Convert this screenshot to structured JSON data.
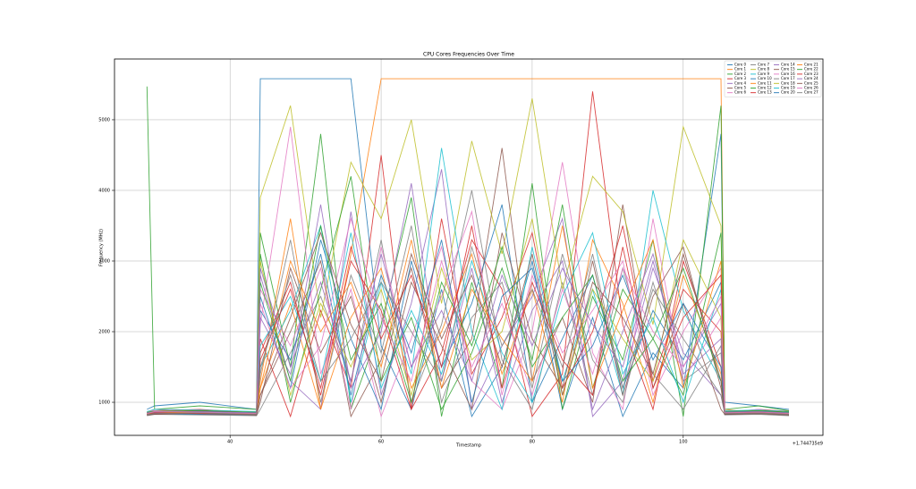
{
  "chart_data": {
    "type": "line",
    "title": "CPU Cores Frequencies Over Time",
    "x_label": "Timestamp",
    "y_label": "Frequency (MHz)",
    "x_offset_text": "+1.744735e9",
    "x": [
      29,
      30,
      36,
      43.5,
      44,
      48,
      52,
      56,
      60,
      64,
      68,
      72,
      76,
      80,
      84,
      88,
      92,
      96,
      100,
      105,
      105.5,
      110,
      114
    ],
    "xlim": [
      24.7,
      118.5
    ],
    "xticks": [
      40,
      60,
      80,
      100
    ],
    "ylim": [
      532,
      5860
    ],
    "yticks": [
      1000,
      2000,
      3000,
      4000,
      5000
    ],
    "grid": true,
    "legend_loc": "upper right",
    "legend_columns": 4,
    "series": [
      {
        "name": "Core 0",
        "color": "#1f77b4",
        "values": [
          900,
          950,
          1000,
          900,
          5580,
          5580,
          5580,
          5580,
          1800,
          900,
          2600,
          800,
          1500,
          3000,
          900,
          2200,
          800,
          1700,
          1200,
          4800,
          1000,
          950,
          900
        ]
      },
      {
        "name": "Core 1",
        "color": "#ff7f0e",
        "values": [
          850,
          900,
          880,
          850,
          1200,
          2400,
          900,
          3100,
          5580,
          5580,
          5580,
          5580,
          5580,
          5580,
          5580,
          5580,
          5580,
          5580,
          5580,
          5580,
          900,
          850,
          880
        ]
      },
      {
        "name": "Core 2",
        "color": "#2ca02c",
        "values": [
          5470,
          900,
          950,
          900,
          3400,
          1500,
          4800,
          900,
          2100,
          3900,
          800,
          2700,
          1200,
          4100,
          900,
          2500,
          1600,
          3300,
          800,
          5200,
          900,
          950,
          880
        ]
      },
      {
        "name": "Core 3",
        "color": "#d62728",
        "values": [
          850,
          880,
          900,
          850,
          1900,
          800,
          2300,
          1200,
          4500,
          900,
          1700,
          3300,
          2600,
          800,
          1400,
          5400,
          2100,
          900,
          3000,
          1500,
          850,
          900,
          870
        ]
      },
      {
        "name": "Core 4",
        "color": "#9467bd",
        "values": [
          820,
          860,
          840,
          820,
          2800,
          1300,
          900,
          3700,
          1100,
          2400,
          4300,
          900,
          1800,
          2500,
          3600,
          800,
          1300,
          2900,
          1700,
          1100,
          840,
          860,
          820
        ]
      },
      {
        "name": "Core 5",
        "color": "#8c564b",
        "values": [
          830,
          850,
          870,
          830,
          1100,
          2000,
          3000,
          800,
          1600,
          2900,
          1200,
          1900,
          4600,
          1300,
          2200,
          1000,
          3800,
          1200,
          2400,
          900,
          830,
          850,
          840
        ]
      },
      {
        "name": "Core 6",
        "color": "#e377c2",
        "values": [
          840,
          900,
          860,
          840,
          2100,
          4900,
          1400,
          2600,
          800,
          1900,
          3200,
          1300,
          900,
          2000,
          4400,
          1700,
          900,
          3600,
          1300,
          2200,
          860,
          900,
          840
        ]
      },
      {
        "name": "Core 7",
        "color": "#7f7f7f",
        "values": [
          810,
          830,
          820,
          810,
          900,
          1700,
          2500,
          1300,
          3300,
          1000,
          2100,
          4000,
          1600,
          900,
          2700,
          1100,
          2900,
          1400,
          900,
          1800,
          820,
          830,
          810
        ]
      },
      {
        "name": "Core 8",
        "color": "#bcbd22",
        "values": [
          860,
          880,
          870,
          860,
          3900,
          5200,
          2200,
          4400,
          3600,
          5000,
          2400,
          4700,
          3100,
          5300,
          2600,
          4200,
          3700,
          2100,
          4900,
          3500,
          870,
          880,
          860
        ]
      },
      {
        "name": "Core 9",
        "color": "#17becf",
        "values": [
          870,
          900,
          890,
          870,
          1500,
          2300,
          3500,
          1000,
          2700,
          1400,
          4600,
          2000,
          900,
          3200,
          1300,
          2600,
          1100,
          4000,
          2300,
          1300,
          880,
          890,
          870
        ]
      },
      {
        "name": "Core 10",
        "color": "#1f77b4",
        "values": [
          830,
          840,
          860,
          830,
          2500,
          1200,
          3300,
          1900,
          900,
          3000,
          1500,
          2400,
          3800,
          1000,
          1900,
          2800,
          1200,
          2300,
          1600,
          2700,
          840,
          850,
          830
        ]
      },
      {
        "name": "Core 11",
        "color": "#ff7f0e",
        "values": [
          820,
          850,
          830,
          820,
          1300,
          3600,
          900,
          2200,
          2900,
          1200,
          2000,
          3100,
          1400,
          2600,
          1000,
          3300,
          2400,
          1000,
          2800,
          1400,
          830,
          840,
          820
        ]
      },
      {
        "name": "Core 12",
        "color": "#2ca02c",
        "values": [
          840,
          870,
          850,
          840,
          3100,
          1000,
          2600,
          4200,
          1300,
          2200,
          900,
          1700,
          2900,
          1600,
          3800,
          1200,
          2600,
          1900,
          1100,
          3400,
          850,
          870,
          840
        ]
      },
      {
        "name": "Core 13",
        "color": "#d62728",
        "values": [
          850,
          860,
          880,
          850,
          1700,
          2700,
          1100,
          3000,
          2300,
          900,
          3600,
          1400,
          2200,
          3400,
          1200,
          2000,
          3500,
          1300,
          2600,
          2000,
          860,
          870,
          850
        ]
      },
      {
        "name": "Core 14",
        "color": "#9467bd",
        "values": [
          830,
          850,
          840,
          830,
          2200,
          1400,
          3800,
          1200,
          2000,
          4100,
          1300,
          2900,
          1000,
          2300,
          3000,
          900,
          2000,
          3100,
          1500,
          2400,
          840,
          850,
          830
        ]
      },
      {
        "name": "Core 15",
        "color": "#8c564b",
        "values": [
          820,
          840,
          860,
          820,
          1000,
          2900,
          1700,
          2500,
          1000,
          2700,
          1800,
          900,
          3400,
          1900,
          1200,
          3000,
          1100,
          2500,
          3200,
          1200,
          830,
          850,
          820
        ]
      },
      {
        "name": "Core 16",
        "color": "#e377c2",
        "values": [
          860,
          880,
          850,
          860,
          2600,
          1800,
          2900,
          900,
          3200,
          1500,
          2500,
          3700,
          1100,
          2800,
          1700,
          2300,
          3000,
          1100,
          2000,
          2900,
          870,
          860,
          850
        ]
      },
      {
        "name": "Core 17",
        "color": "#7f7f7f",
        "values": [
          840,
          850,
          870,
          840,
          1400,
          3300,
          1000,
          2800,
          1700,
          3500,
          1000,
          2200,
          2700,
          1200,
          3100,
          1600,
          1000,
          2700,
          1300,
          1700,
          850,
          860,
          840
        ]
      },
      {
        "name": "Core 18",
        "color": "#bcbd22",
        "values": [
          830,
          860,
          840,
          830,
          3000,
          1100,
          2400,
          1500,
          2600,
          1100,
          2900,
          1600,
          2000,
          3600,
          1100,
          2600,
          1900,
          1300,
          3300,
          2200,
          840,
          850,
          830
        ]
      },
      {
        "name": "Core 19",
        "color": "#17becf",
        "values": [
          850,
          870,
          860,
          850,
          1800,
          2500,
          1300,
          3400,
          1200,
          2300,
          1400,
          3000,
          1700,
          1000,
          2500,
          3400,
          1400,
          2200,
          1000,
          2600,
          860,
          870,
          850
        ]
      },
      {
        "name": "Core 20",
        "color": "#1f77b4",
        "values": [
          820,
          840,
          830,
          820,
          2300,
          1600,
          3100,
          1100,
          2800,
          1700,
          3300,
          1000,
          2500,
          2900,
          1300,
          1800,
          2800,
          1600,
          2400,
          1500,
          830,
          840,
          820
        ]
      },
      {
        "name": "Core 21",
        "color": "#ff7f0e",
        "values": [
          840,
          860,
          850,
          840,
          1200,
          3000,
          2000,
          2700,
          1500,
          3300,
          1200,
          2600,
          1900,
          1300,
          3500,
          1200,
          2300,
          3300,
          1200,
          3000,
          850,
          860,
          840
        ]
      },
      {
        "name": "Core 22",
        "color": "#2ca02c",
        "values": [
          860,
          870,
          880,
          860,
          2700,
          1300,
          3500,
          1600,
          2400,
          1000,
          2700,
          1800,
          3200,
          1500,
          2200,
          2800,
          1300,
          1900,
          2900,
          1300,
          870,
          880,
          860
        ]
      },
      {
        "name": "Core 23",
        "color": "#d62728",
        "values": [
          830,
          850,
          840,
          830,
          1600,
          2600,
          1200,
          3200,
          1900,
          2800,
          1500,
          3500,
          1200,
          2700,
          1600,
          1100,
          3200,
          1200,
          2200,
          2800,
          840,
          860,
          830
        ]
      },
      {
        "name": "Core 24",
        "color": "#9467bd",
        "values": [
          850,
          860,
          870,
          850,
          2900,
          1500,
          2700,
          1300,
          3100,
          1500,
          2300,
          1300,
          2800,
          1800,
          2900,
          2100,
          1500,
          3000,
          1400,
          1900,
          860,
          870,
          850
        ]
      },
      {
        "name": "Core 25",
        "color": "#8c564b",
        "values": [
          820,
          830,
          850,
          820,
          1100,
          2200,
          3400,
          2100,
          1300,
          3100,
          1900,
          2800,
          1500,
          3100,
          1100,
          2700,
          2200,
          1400,
          3100,
          1300,
          830,
          840,
          820
        ]
      },
      {
        "name": "Core 26",
        "color": "#e377c2",
        "values": [
          840,
          870,
          860,
          840,
          2400,
          1200,
          1800,
          3600,
          2200,
          1300,
          3000,
          1500,
          2400,
          1100,
          2600,
          1400,
          2900,
          2000,
          1500,
          2500,
          850,
          860,
          840
        ]
      },
      {
        "name": "Core 27",
        "color": "#7f7f7f",
        "values": [
          830,
          840,
          850,
          830,
          1500,
          2800,
          1300,
          1900,
          2700,
          2000,
          1300,
          3200,
          1800,
          2600,
          1500,
          3100,
          1200,
          2600,
          1900,
          1100,
          840,
          850,
          830
        ]
      }
    ]
  }
}
